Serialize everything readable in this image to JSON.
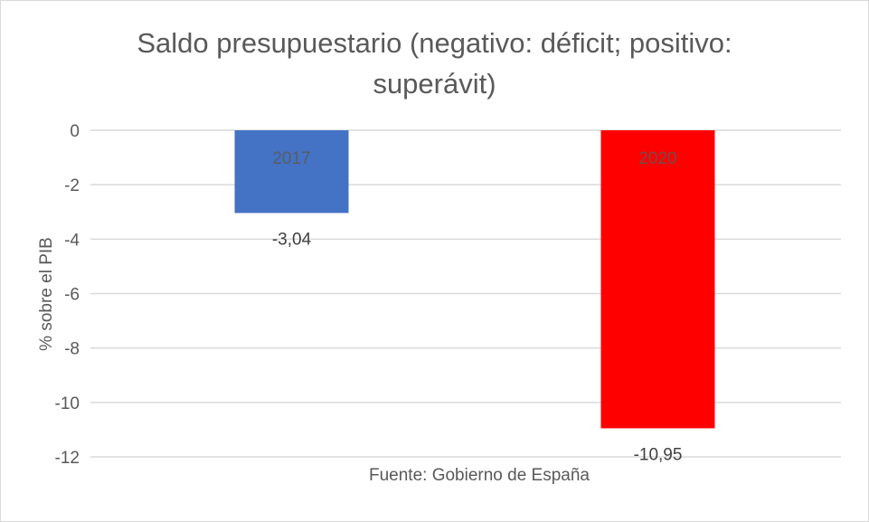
{
  "chart_data": {
    "type": "bar",
    "title_lines": [
      "Saldo presupuestario (negativo: déficit; positivo:",
      "superávit)"
    ],
    "categories": [
      "2017",
      "2020"
    ],
    "values": [
      -3.04,
      -10.95
    ],
    "data_labels": [
      "-3,04",
      "-10,95"
    ],
    "colors": [
      "#4472C4",
      "#FF0000"
    ],
    "xlabel": "Fuente: Gobierno de España",
    "ylabel": "% sobre el PIB",
    "ylim": [
      -12,
      0
    ],
    "yticks": [
      0,
      -2,
      -4,
      -6,
      -8,
      -10,
      -12
    ],
    "grid": true,
    "legend": "none"
  }
}
